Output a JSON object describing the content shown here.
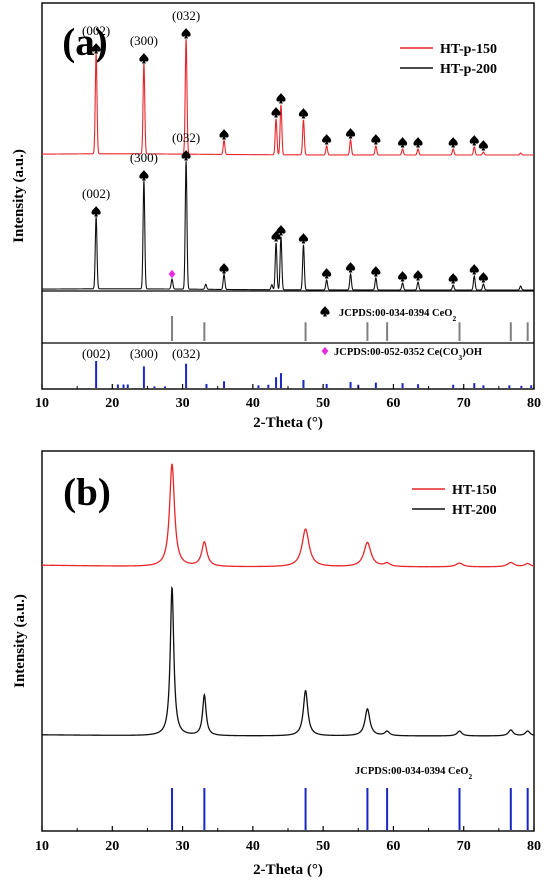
{
  "chart_data": [
    {
      "panel_label": "(a)",
      "type": "line",
      "xlabel": "2-Theta (°)",
      "ylabel": "Intensity (a.u.)",
      "xlim": [
        10,
        80
      ],
      "xticks": [
        10,
        20,
        30,
        40,
        50,
        60,
        70,
        80
      ],
      "legend": {
        "placement": "top-right"
      },
      "series": [
        {
          "name": "HT-p-150",
          "color": "#e8262a",
          "peaks": [
            [
              17.7,
              100
            ],
            [
              24.5,
              90
            ],
            [
              30.5,
              115
            ],
            [
              35.9,
              14
            ],
            [
              43.3,
              36
            ],
            [
              44.0,
              50
            ],
            [
              47.2,
              35
            ],
            [
              50.5,
              9
            ],
            [
              53.9,
              15
            ],
            [
              57.5,
              9
            ],
            [
              61.3,
              6
            ],
            [
              63.5,
              6
            ],
            [
              68.5,
              6
            ],
            [
              71.5,
              8
            ],
            [
              72.8,
              3
            ],
            [
              78.1,
              2
            ]
          ]
        },
        {
          "name": "HT-p-200",
          "color": "#111111",
          "peaks": [
            [
              17.7,
              72
            ],
            [
              24.5,
              108
            ],
            [
              28.5,
              10
            ],
            [
              30.5,
              128
            ],
            [
              33.3,
              5
            ],
            [
              35.9,
              15
            ],
            [
              42.7,
              5
            ],
            [
              43.3,
              47
            ],
            [
              44.0,
              53
            ],
            [
              47.2,
              45
            ],
            [
              50.5,
              10
            ],
            [
              53.9,
              16
            ],
            [
              57.5,
              12
            ],
            [
              61.3,
              7
            ],
            [
              63.5,
              8
            ],
            [
              68.5,
              5
            ],
            [
              71.5,
              14
            ],
            [
              72.8,
              6
            ],
            [
              78.1,
              4
            ]
          ]
        }
      ],
      "peak_labels": [
        {
          "text": "(002)",
          "series": "HT-p-150",
          "x": 17.7
        },
        {
          "text": "(300)",
          "series": "HT-p-150",
          "x": 24.5
        },
        {
          "text": "(032)",
          "series": "HT-p-150",
          "x": 30.5
        },
        {
          "text": "(002)",
          "series": "HT-p-200",
          "x": 17.7
        },
        {
          "text": "(300)",
          "series": "HT-p-200",
          "x": 24.5
        },
        {
          "text": "(032)",
          "series": "HT-p-200",
          "x": 30.5
        }
      ],
      "spade_markers": {
        "HT-p-150": [
          17.7,
          24.5,
          30.5,
          35.9,
          43.3,
          44.0,
          47.2,
          50.5,
          53.9,
          57.5,
          61.3,
          63.5,
          68.5,
          71.5,
          72.8
        ],
        "HT-p-200": [
          17.7,
          24.5,
          30.5,
          35.9,
          43.3,
          44.0,
          47.2,
          50.5,
          53.9,
          57.5,
          61.3,
          63.5,
          68.5,
          71.5,
          72.8
        ]
      },
      "diamond_markers": {
        "HT-p-200": [
          28.5
        ]
      },
      "reference_ceo2": {
        "label": "JCPDS:00-034-0394 CeO",
        "label_subscript": "2",
        "color": "#808080",
        "lines": [
          [
            28.5,
            100
          ],
          [
            33.1,
            75
          ],
          [
            47.5,
            75
          ],
          [
            56.3,
            75
          ],
          [
            59.1,
            75
          ],
          [
            69.4,
            75
          ],
          [
            76.7,
            75
          ],
          [
            79.1,
            75
          ]
        ]
      },
      "reference_carbonate": {
        "label_parts": [
          "JCPDS:00-052-0352 Ce(CO",
          "3",
          ")OH"
        ],
        "color": "#1a25c7",
        "index_labels": [
          {
            "text": "(002)",
            "x": 17.7
          },
          {
            "text": "(300)",
            "x": 24.5
          },
          {
            "text": "(032)",
            "x": 30.5
          }
        ],
        "lines": [
          [
            17.7,
            100
          ],
          [
            20.8,
            13
          ],
          [
            21.6,
            13
          ],
          [
            22.2,
            13
          ],
          [
            24.5,
            80
          ],
          [
            26.0,
            6
          ],
          [
            27.5,
            6
          ],
          [
            30.5,
            90
          ],
          [
            33.4,
            15
          ],
          [
            35.9,
            25
          ],
          [
            40.8,
            10
          ],
          [
            42.2,
            12
          ],
          [
            43.3,
            40
          ],
          [
            44.0,
            55
          ],
          [
            47.2,
            30
          ],
          [
            50.5,
            15
          ],
          [
            53.9,
            22
          ],
          [
            55.0,
            12
          ],
          [
            57.5,
            20
          ],
          [
            61.3,
            18
          ],
          [
            63.5,
            14
          ],
          [
            68.5,
            12
          ],
          [
            71.5,
            18
          ],
          [
            72.8,
            10
          ],
          [
            76.5,
            10
          ],
          [
            78.2,
            8
          ],
          [
            79.6,
            10
          ]
        ]
      }
    },
    {
      "panel_label": "(b)",
      "type": "line",
      "xlabel": "2-Theta (°)",
      "ylabel": "Intensity (a.u.)",
      "xlim": [
        10,
        80
      ],
      "xticks": [
        10,
        20,
        30,
        40,
        50,
        60,
        70,
        80
      ],
      "legend": {
        "placement": "top-right"
      },
      "series": [
        {
          "name": "HT-150",
          "color": "#e8262a",
          "peaks": [
            [
              28.5,
              190,
              0.42
            ],
            [
              33.1,
              45,
              0.45
            ],
            [
              47.5,
              70,
              0.6
            ],
            [
              56.3,
              45,
              0.6
            ],
            [
              59.1,
              6,
              0.5
            ],
            [
              69.4,
              7,
              0.6
            ],
            [
              76.7,
              8,
              0.6
            ],
            [
              79.1,
              6,
              0.5
            ]
          ]
        },
        {
          "name": "HT-200",
          "color": "#111111",
          "peaks": [
            [
              28.5,
              275,
              0.3
            ],
            [
              33.1,
              75,
              0.3
            ],
            [
              47.5,
              84,
              0.38
            ],
            [
              56.3,
              50,
              0.42
            ],
            [
              59.1,
              8,
              0.4
            ],
            [
              69.4,
              9,
              0.4
            ],
            [
              76.7,
              11,
              0.4
            ],
            [
              79.1,
              9,
              0.4
            ]
          ]
        }
      ],
      "reference_ceo2": {
        "label": "JCPDS:00-034-0394 CeO",
        "label_subscript": "2",
        "color": "#1a25c7",
        "lines": [
          [
            28.5,
            100
          ],
          [
            33.1,
            100
          ],
          [
            47.5,
            100
          ],
          [
            56.3,
            100
          ],
          [
            59.1,
            100
          ],
          [
            69.4,
            100
          ],
          [
            76.7,
            100
          ],
          [
            79.1,
            100
          ]
        ]
      }
    }
  ]
}
